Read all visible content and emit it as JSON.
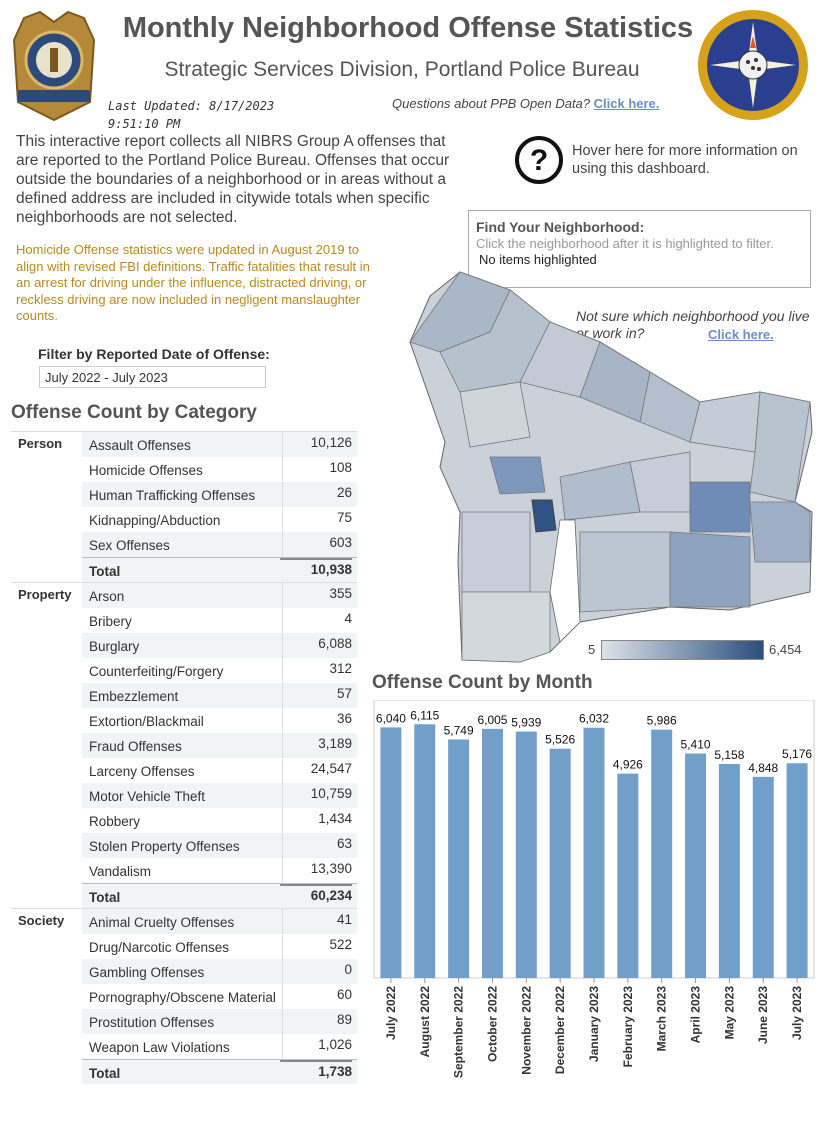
{
  "header": {
    "title": "Monthly Neighborhood Offense Statistics",
    "subtitle": "Strategic Services Division, Portland Police Bureau",
    "updated_line1": "Last Updated: 8/17/2023",
    "updated_line2": "9:51:10 PM",
    "open_data_prompt": "Questions about PPB Open Data?",
    "open_data_link": "Click here."
  },
  "intro_text": "This interactive report collects all NIBRS Group A offenses that are reported to the Portland Police Bureau. Offenses that occur outside the boundaries of a neighborhood or in areas without a defined address are included in citywide totals when specific neighborhoods are not selected.",
  "homicide_note": "Homicide Offense statistics were updated in August 2019 to align with revised FBI definitions. Traffic fatalities that result in an arrest for driving under the influence, distracted driving, or reckless driving are now included in negligent manslaughter counts.",
  "help": {
    "text": "Hover here for more information on using this dashboard.",
    "icon": "question-circle-icon"
  },
  "find_neighborhood": {
    "title": "Find Your Neighborhood:",
    "hint": "Click the neighborhood after it is highlighted to filter.",
    "value": "No items highlighted"
  },
  "not_sure": {
    "text": "Not sure which neighborhood you live or work in?",
    "link": "Click here."
  },
  "filter": {
    "label": "Filter by Reported Date of Offense:",
    "value": "July 2022 - July 2023"
  },
  "table": {
    "title": "Offense Count by Category",
    "groups": [
      {
        "name": "Person",
        "rows": [
          {
            "label": "Assault Offenses",
            "value": "10,126"
          },
          {
            "label": "Homicide Offenses",
            "value": "108"
          },
          {
            "label": "Human Trafficking Offenses",
            "value": "26"
          },
          {
            "label": "Kidnapping/Abduction",
            "value": "75"
          },
          {
            "label": "Sex Offenses",
            "value": "603"
          }
        ],
        "total_label": "Total",
        "total": "10,938"
      },
      {
        "name": "Property",
        "rows": [
          {
            "label": "Arson",
            "value": "355"
          },
          {
            "label": "Bribery",
            "value": "4"
          },
          {
            "label": "Burglary",
            "value": "6,088"
          },
          {
            "label": "Counterfeiting/Forgery",
            "value": "312"
          },
          {
            "label": "Embezzlement",
            "value": "57"
          },
          {
            "label": "Extortion/Blackmail",
            "value": "36"
          },
          {
            "label": "Fraud Offenses",
            "value": "3,189"
          },
          {
            "label": "Larceny Offenses",
            "value": "24,547"
          },
          {
            "label": "Motor Vehicle Theft",
            "value": "10,759"
          },
          {
            "label": "Robbery",
            "value": "1,434"
          },
          {
            "label": "Stolen Property Offenses",
            "value": "63"
          },
          {
            "label": "Vandalism",
            "value": "13,390"
          }
        ],
        "total_label": "Total",
        "total": "60,234"
      },
      {
        "name": "Society",
        "rows": [
          {
            "label": "Animal Cruelty Offenses",
            "value": "41"
          },
          {
            "label": "Drug/Narcotic Offenses",
            "value": "522"
          },
          {
            "label": "Gambling Offenses",
            "value": "0"
          },
          {
            "label": "Pornography/Obscene Material",
            "value": "60"
          },
          {
            "label": "Prostitution Offenses",
            "value": "89"
          },
          {
            "label": "Weapon Law Violations",
            "value": "1,026"
          }
        ],
        "total_label": "Total",
        "total": "1,738"
      }
    ]
  },
  "map": {
    "legend_min": "5",
    "legend_max": "6,454",
    "color_low": "#dde2e8",
    "color_high": "#2b4f7e"
  },
  "chart_data": {
    "type": "bar",
    "title": "Offense Count by Month",
    "categories": [
      "July 2022",
      "August 2022",
      "September 2022",
      "October 2022",
      "November 2022",
      "December 2022",
      "January 2023",
      "February 2023",
      "March 2023",
      "April 2023",
      "May 2023",
      "June 2023",
      "July 2023"
    ],
    "values": [
      6040,
      6115,
      5749,
      6005,
      5939,
      5526,
      6032,
      4926,
      5986,
      5410,
      5158,
      4848,
      5176
    ],
    "labels": [
      "6,040",
      "6,115",
      "5,749",
      "6,005",
      "5,939",
      "5,526",
      "6,032",
      "4,926",
      "5,986",
      "5,410",
      "5,158",
      "4,848",
      "5,176"
    ],
    "ylim": [
      0,
      6700
    ],
    "bar_color": "#729fca",
    "grid": false
  }
}
